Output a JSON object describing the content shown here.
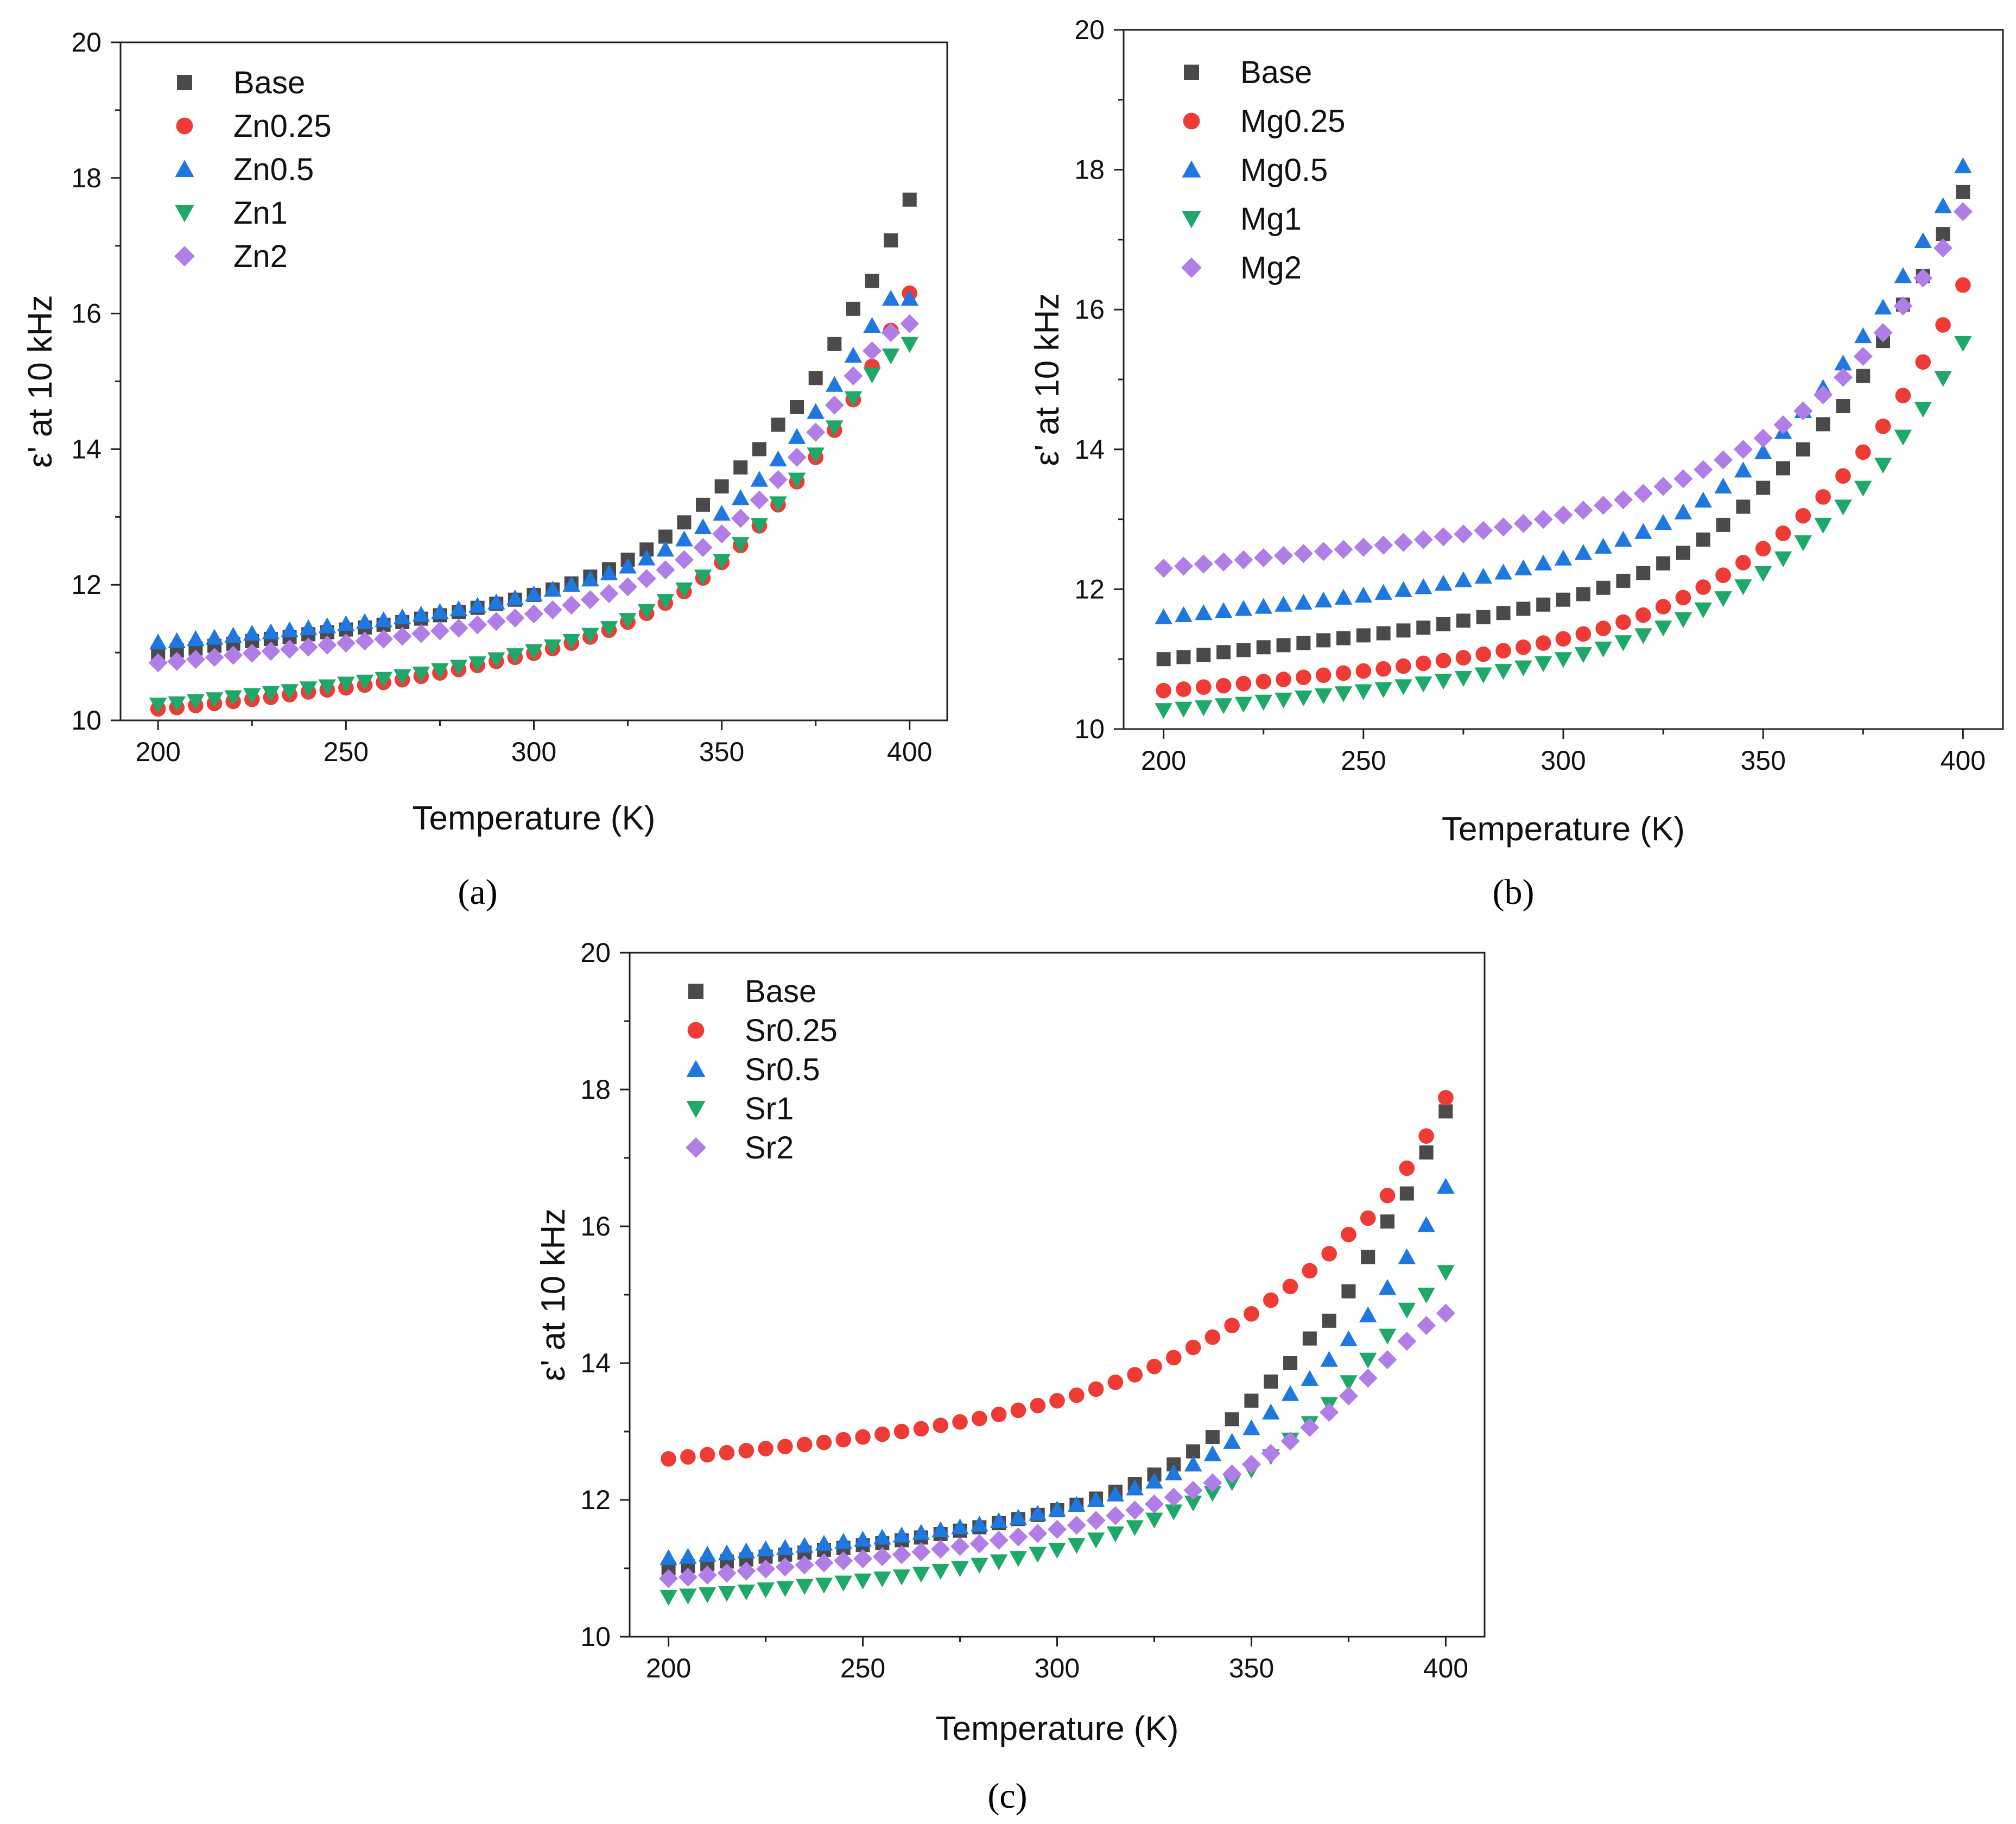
{
  "figure": {
    "panel_labels": [
      "(a)",
      "(b)",
      "(c)"
    ]
  },
  "colors": {
    "Base": "#4a4a4a",
    "0.25": "#ef3b36",
    "0.5": "#1f77e0",
    "1": "#1ea86a",
    "2": "#b07ee6"
  },
  "markers": {
    "Base": "square",
    "0.25": "circle",
    "0.5": "triangle-up",
    "1": "triangle-down",
    "2": "diamond"
  },
  "chart_data": [
    {
      "type": "scatter",
      "panel": "(a)",
      "xlabel": "Temperature (K)",
      "ylabel": "ε' at 10 kHz",
      "xlim": [
        190,
        410
      ],
      "ylim": [
        10,
        20
      ],
      "xticks": [
        200,
        250,
        300,
        350,
        400
      ],
      "yticks": [
        10,
        12,
        14,
        16,
        18,
        20
      ],
      "x": [
        200,
        205,
        210,
        215,
        220,
        225,
        230,
        235,
        240,
        245,
        250,
        255,
        260,
        265,
        270,
        275,
        280,
        285,
        290,
        295,
        300,
        305,
        310,
        315,
        320,
        325,
        330,
        335,
        340,
        345,
        350,
        355,
        360,
        365,
        370,
        375,
        380,
        385,
        390,
        395,
        400
      ],
      "legend_position": "top-left",
      "series": [
        {
          "name": "Base",
          "key": "Base",
          "values": [
            11.0,
            11.03,
            11.06,
            11.1,
            11.13,
            11.17,
            11.2,
            11.23,
            11.27,
            11.3,
            11.34,
            11.37,
            11.41,
            11.45,
            11.5,
            11.55,
            11.6,
            11.66,
            11.72,
            11.78,
            11.85,
            11.93,
            12.02,
            12.12,
            12.23,
            12.37,
            12.52,
            12.71,
            12.92,
            13.18,
            13.45,
            13.73,
            14.0,
            14.36,
            14.62,
            15.05,
            15.55,
            16.07,
            16.48,
            17.08,
            17.68
          ]
        },
        {
          "name": "Zn0.25",
          "key": "0.25",
          "values": [
            10.17,
            10.19,
            10.22,
            10.25,
            10.28,
            10.31,
            10.34,
            10.38,
            10.42,
            10.45,
            10.48,
            10.52,
            10.56,
            10.6,
            10.65,
            10.7,
            10.75,
            10.81,
            10.87,
            10.93,
            10.99,
            11.06,
            11.14,
            11.23,
            11.33,
            11.45,
            11.58,
            11.73,
            11.9,
            12.1,
            12.33,
            12.58,
            12.87,
            13.18,
            13.52,
            13.88,
            14.28,
            14.73,
            15.22,
            15.75,
            16.3
          ]
        },
        {
          "name": "Zn0.5",
          "key": "0.5",
          "values": [
            11.15,
            11.17,
            11.2,
            11.22,
            11.25,
            11.28,
            11.3,
            11.33,
            11.36,
            11.39,
            11.42,
            11.45,
            11.48,
            11.52,
            11.56,
            11.6,
            11.64,
            11.69,
            11.74,
            11.8,
            11.86,
            11.93,
            12.0,
            12.08,
            12.17,
            12.27,
            12.39,
            12.52,
            12.67,
            12.85,
            13.05,
            13.28,
            13.55,
            13.85,
            14.18,
            14.55,
            14.95,
            15.38,
            15.82,
            16.22,
            16.22
          ]
        },
        {
          "name": "Zn1",
          "key": "1",
          "values": [
            10.23,
            10.25,
            10.28,
            10.31,
            10.34,
            10.37,
            10.4,
            10.43,
            10.47,
            10.5,
            10.54,
            10.57,
            10.61,
            10.65,
            10.69,
            10.74,
            10.79,
            10.84,
            10.9,
            10.96,
            11.02,
            11.09,
            11.17,
            11.26,
            11.36,
            11.48,
            11.61,
            11.76,
            11.93,
            12.12,
            12.35,
            12.6,
            12.88,
            13.2,
            13.55,
            13.92,
            14.32,
            14.75,
            15.1,
            15.38,
            15.55
          ]
        },
        {
          "name": "Zn2",
          "key": "2",
          "values": [
            10.85,
            10.87,
            10.9,
            10.93,
            10.96,
            10.99,
            11.02,
            11.05,
            11.08,
            11.11,
            11.14,
            11.17,
            11.2,
            11.24,
            11.28,
            11.32,
            11.36,
            11.41,
            11.46,
            11.51,
            11.57,
            11.63,
            11.7,
            11.78,
            11.87,
            11.97,
            12.09,
            12.22,
            12.37,
            12.55,
            12.75,
            12.98,
            13.25,
            13.55,
            13.88,
            14.25,
            14.65,
            15.08,
            15.45,
            15.72,
            15.85
          ]
        }
      ]
    },
    {
      "type": "scatter",
      "panel": "(b)",
      "xlabel": "Temperature (K)",
      "ylabel": "ε' at 10 kHz",
      "xlim": [
        190,
        410
      ],
      "ylim": [
        10,
        20
      ],
      "xticks": [
        200,
        250,
        300,
        350,
        400
      ],
      "yticks": [
        10,
        12,
        14,
        16,
        18,
        20
      ],
      "x": [
        200,
        205,
        210,
        215,
        220,
        225,
        230,
        235,
        240,
        245,
        250,
        255,
        260,
        265,
        270,
        275,
        280,
        285,
        290,
        295,
        300,
        305,
        310,
        315,
        320,
        325,
        330,
        335,
        340,
        345,
        350,
        355,
        360,
        365,
        370,
        375,
        380,
        385,
        390,
        395,
        400
      ],
      "legend_position": "top-left",
      "series": [
        {
          "name": "Base",
          "key": "Base",
          "values": [
            11.0,
            11.03,
            11.06,
            11.1,
            11.13,
            11.17,
            11.2,
            11.23,
            11.27,
            11.3,
            11.34,
            11.37,
            11.41,
            11.45,
            11.5,
            11.55,
            11.6,
            11.66,
            11.72,
            11.78,
            11.85,
            11.93,
            12.02,
            12.12,
            12.23,
            12.37,
            12.52,
            12.71,
            12.92,
            13.18,
            13.45,
            13.73,
            14.0,
            14.36,
            14.62,
            15.05,
            15.55,
            16.07,
            16.48,
            17.08,
            17.68
          ]
        },
        {
          "name": "Mg0.25",
          "key": "0.25",
          "values": [
            10.55,
            10.57,
            10.6,
            10.62,
            10.65,
            10.68,
            10.71,
            10.74,
            10.77,
            10.8,
            10.83,
            10.86,
            10.9,
            10.94,
            10.98,
            11.02,
            11.07,
            11.12,
            11.17,
            11.23,
            11.29,
            11.36,
            11.44,
            11.53,
            11.63,
            11.75,
            11.88,
            12.03,
            12.2,
            12.38,
            12.58,
            12.8,
            13.05,
            13.32,
            13.62,
            13.96,
            14.33,
            14.77,
            15.25,
            15.78,
            16.35
          ]
        },
        {
          "name": "Mg0.5",
          "key": "0.5",
          "values": [
            11.6,
            11.63,
            11.66,
            11.69,
            11.72,
            11.75,
            11.78,
            11.81,
            11.84,
            11.88,
            11.91,
            11.95,
            11.99,
            12.03,
            12.08,
            12.13,
            12.18,
            12.24,
            12.3,
            12.37,
            12.44,
            12.52,
            12.61,
            12.71,
            12.82,
            12.95,
            13.1,
            13.27,
            13.47,
            13.7,
            13.96,
            14.25,
            14.55,
            14.88,
            15.23,
            15.62,
            16.03,
            16.48,
            16.98,
            17.48,
            18.05
          ]
        },
        {
          "name": "Mg1",
          "key": "1",
          "values": [
            10.27,
            10.29,
            10.31,
            10.34,
            10.36,
            10.39,
            10.42,
            10.45,
            10.48,
            10.51,
            10.54,
            10.57,
            10.61,
            10.65,
            10.69,
            10.73,
            10.78,
            10.83,
            10.88,
            10.94,
            11.0,
            11.07,
            11.15,
            11.24,
            11.34,
            11.45,
            11.57,
            11.71,
            11.87,
            12.04,
            12.23,
            12.44,
            12.67,
            12.92,
            13.18,
            13.45,
            13.78,
            14.18,
            14.58,
            15.02,
            15.52
          ]
        },
        {
          "name": "Mg2",
          "key": "2",
          "values": [
            12.3,
            12.33,
            12.36,
            12.39,
            12.42,
            12.45,
            12.48,
            12.51,
            12.54,
            12.57,
            12.6,
            12.63,
            12.67,
            12.71,
            12.75,
            12.79,
            12.84,
            12.89,
            12.94,
            13.0,
            13.06,
            13.13,
            13.2,
            13.28,
            13.37,
            13.47,
            13.58,
            13.71,
            13.85,
            14.0,
            14.16,
            14.35,
            14.55,
            14.78,
            15.03,
            15.33,
            15.67,
            16.05,
            16.45,
            16.88,
            17.4
          ]
        }
      ]
    },
    {
      "type": "scatter",
      "panel": "(c)",
      "xlabel": "Temperature (K)",
      "ylabel": "ε' at 10 kHz",
      "xlim": [
        190,
        410
      ],
      "ylim": [
        10,
        20
      ],
      "xticks": [
        200,
        250,
        300,
        350,
        400
      ],
      "yticks": [
        10,
        12,
        14,
        16,
        18,
        20
      ],
      "x": [
        200,
        205,
        210,
        215,
        220,
        225,
        230,
        235,
        240,
        245,
        250,
        255,
        260,
        265,
        270,
        275,
        280,
        285,
        290,
        295,
        300,
        305,
        310,
        315,
        320,
        325,
        330,
        335,
        340,
        345,
        350,
        355,
        360,
        365,
        370,
        375,
        380,
        385,
        390,
        395,
        400
      ],
      "legend_position": "top-left",
      "series": [
        {
          "name": "Base",
          "key": "Base",
          "values": [
            11.0,
            11.03,
            11.06,
            11.1,
            11.13,
            11.17,
            11.2,
            11.23,
            11.27,
            11.3,
            11.34,
            11.37,
            11.41,
            11.45,
            11.5,
            11.55,
            11.6,
            11.66,
            11.72,
            11.78,
            11.85,
            11.93,
            12.02,
            12.12,
            12.23,
            12.37,
            12.52,
            12.71,
            12.92,
            13.18,
            13.45,
            13.73,
            14.0,
            14.36,
            14.62,
            15.05,
            15.55,
            16.07,
            16.48,
            17.08,
            17.68
          ]
        },
        {
          "name": "Sr0.25",
          "key": "0.25",
          "values": [
            12.6,
            12.63,
            12.66,
            12.69,
            12.72,
            12.75,
            12.78,
            12.81,
            12.84,
            12.88,
            12.92,
            12.96,
            13.0,
            13.04,
            13.09,
            13.14,
            13.19,
            13.25,
            13.31,
            13.38,
            13.45,
            13.53,
            13.62,
            13.72,
            13.83,
            13.95,
            14.08,
            14.23,
            14.38,
            14.55,
            14.72,
            14.92,
            15.12,
            15.35,
            15.6,
            15.88,
            16.12,
            16.45,
            16.85,
            17.32,
            17.88
          ]
        },
        {
          "name": "Sr0.5",
          "key": "0.5",
          "values": [
            11.15,
            11.17,
            11.2,
            11.22,
            11.25,
            11.28,
            11.3,
            11.33,
            11.36,
            11.39,
            11.42,
            11.45,
            11.48,
            11.52,
            11.56,
            11.6,
            11.64,
            11.69,
            11.74,
            11.8,
            11.86,
            11.93,
            12.0,
            12.08,
            12.17,
            12.27,
            12.39,
            12.52,
            12.67,
            12.85,
            13.05,
            13.28,
            13.55,
            13.77,
            14.05,
            14.35,
            14.7,
            15.1,
            15.55,
            16.02,
            16.58
          ]
        },
        {
          "name": "Sr1",
          "key": "1",
          "values": [
            10.58,
            10.6,
            10.62,
            10.64,
            10.66,
            10.69,
            10.71,
            10.74,
            10.76,
            10.79,
            10.82,
            10.85,
            10.88,
            10.92,
            10.96,
            11.0,
            11.05,
            11.1,
            11.15,
            11.21,
            11.27,
            11.34,
            11.42,
            11.51,
            11.6,
            11.71,
            11.83,
            11.96,
            12.1,
            12.26,
            12.44,
            12.64,
            12.88,
            13.12,
            13.4,
            13.72,
            14.05,
            14.4,
            14.78,
            15.0,
            15.33
          ]
        },
        {
          "name": "Sr2",
          "key": "2",
          "values": [
            10.85,
            10.87,
            10.9,
            10.93,
            10.96,
            10.99,
            11.02,
            11.05,
            11.08,
            11.11,
            11.14,
            11.17,
            11.2,
            11.24,
            11.28,
            11.32,
            11.36,
            11.41,
            11.46,
            11.51,
            11.57,
            11.63,
            11.7,
            11.77,
            11.85,
            11.94,
            12.04,
            12.14,
            12.25,
            12.38,
            12.52,
            12.68,
            12.86,
            13.06,
            13.28,
            13.52,
            13.78,
            14.05,
            14.32,
            14.55,
            14.73
          ]
        }
      ]
    }
  ]
}
